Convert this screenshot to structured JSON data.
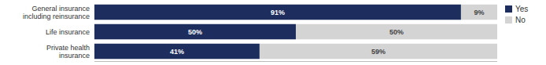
{
  "chart_data": {
    "type": "bar",
    "orientation": "horizontal",
    "stacked": true,
    "categories": [
      "General insurance\nincluding reinsurance",
      "Life insurance",
      "Private health\ninsurance"
    ],
    "series": [
      {
        "name": "Yes",
        "color": "#1c2d5e",
        "values": [
          91,
          50,
          41
        ],
        "value_labels": [
          "91%",
          "50%",
          "41%"
        ]
      },
      {
        "name": "No",
        "color": "#d4d4d4",
        "values": [
          9,
          50,
          59
        ],
        "value_labels": [
          "9%",
          "50%",
          "59%"
        ]
      }
    ],
    "xlim": [
      0,
      100
    ],
    "data_labels": true,
    "tick_labels": "y",
    "legend": "right"
  }
}
